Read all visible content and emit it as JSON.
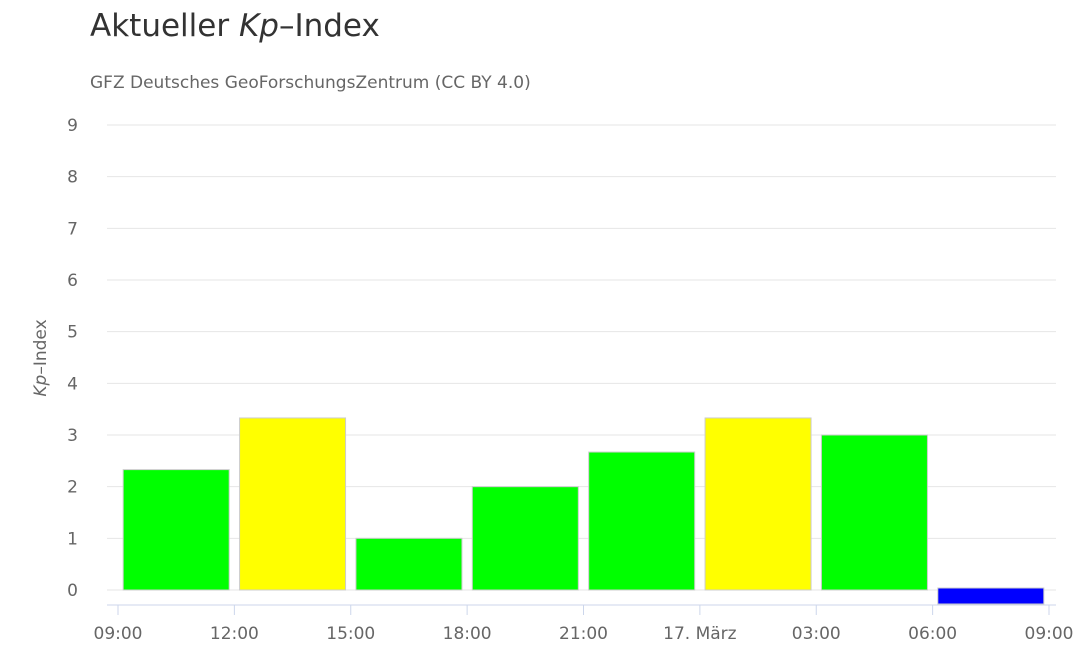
{
  "title": {
    "prefix": "Aktueller ",
    "kp": "Kp",
    "suffix": "–Index"
  },
  "subtitle": "GFZ Deutsches GeoForschungsZentrum (CC BY 4.0)",
  "chart_data": {
    "type": "bar",
    "title": "Aktueller Kp–Index",
    "subtitle": "GFZ Deutsches GeoForschungsZentrum (CC BY 4.0)",
    "ylabel_kp": "Kp",
    "ylabel_rest": "–Index",
    "ylim": [
      0,
      9
    ],
    "yticks": [
      "0",
      "1",
      "2",
      "3",
      "4",
      "5",
      "6",
      "7",
      "8",
      "9"
    ],
    "xticks": [
      "09:00",
      "12:00",
      "15:00",
      "18:00",
      "21:00",
      "17. März",
      "03:00",
      "06:00",
      "09:00"
    ],
    "grid": true,
    "bars": [
      {
        "value": 2.33,
        "color": "#00ff00"
      },
      {
        "value": 3.33,
        "color": "#ffff00"
      },
      {
        "value": 1.0,
        "color": "#00ff00"
      },
      {
        "value": 2.0,
        "color": "#00ff00"
      },
      {
        "value": 2.67,
        "color": "#00ff00"
      },
      {
        "value": 3.33,
        "color": "#ffff00"
      },
      {
        "value": 3.0,
        "color": "#00ff00"
      },
      {
        "value": 0.0,
        "color": "#0000ff"
      }
    ]
  }
}
